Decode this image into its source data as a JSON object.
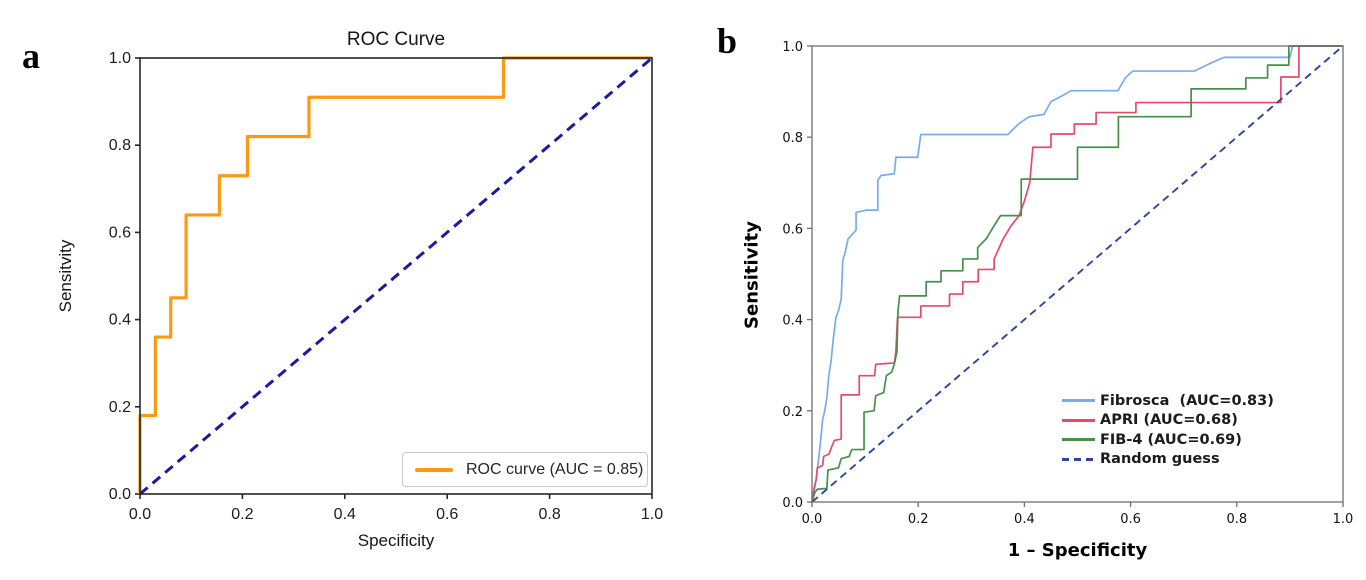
{
  "figure": {
    "background": "#ffffff"
  },
  "panels": [
    {
      "tag": "a",
      "title": "ROC Curve",
      "xlabel": "Specificity",
      "ylabel": "Sensitvity"
    },
    {
      "tag": "b",
      "title": "",
      "xlabel": "1 – Specificity",
      "ylabel": "Sensitivity"
    }
  ],
  "chart_data": [
    {
      "type": "line",
      "title": "ROC Curve",
      "xlabel": "Specificity",
      "ylabel": "Sensitvity",
      "xlim": [
        0,
        1
      ],
      "ylim": [
        0,
        1
      ],
      "xticks": [
        "0.0",
        "0.2",
        "0.4",
        "0.6",
        "0.8",
        "1.0"
      ],
      "yticks": [
        "0.0",
        "0.2",
        "0.4",
        "0.6",
        "0.8",
        "1.0"
      ],
      "grid": false,
      "legend_position": "lower right",
      "legend_frame": true,
      "series": [
        {
          "name": "ROC curve (AUC = 0.85)",
          "auc": 0.85,
          "color": "#ff9914",
          "dash": false,
          "width": 3.2,
          "points": [
            [
              0,
              0
            ],
            [
              0,
              0.18
            ],
            [
              0.03,
              0.18
            ],
            [
              0.03,
              0.36
            ],
            [
              0.06,
              0.36
            ],
            [
              0.06,
              0.45
            ],
            [
              0.09,
              0.45
            ],
            [
              0.09,
              0.64
            ],
            [
              0.155,
              0.64
            ],
            [
              0.155,
              0.73
            ],
            [
              0.21,
              0.73
            ],
            [
              0.21,
              0.82
            ],
            [
              0.33,
              0.82
            ],
            [
              0.33,
              0.91
            ],
            [
              0.71,
              0.91
            ],
            [
              0.71,
              1
            ],
            [
              1,
              1
            ]
          ]
        },
        {
          "color": "#1b1b9e",
          "dash": "10 6.5",
          "width": 3,
          "points": [
            [
              0,
              0
            ],
            [
              1,
              1
            ]
          ]
        }
      ]
    },
    {
      "type": "line",
      "title": "",
      "xlabel": "1 – Specificity",
      "ylabel": "Sensitivity",
      "xlim": [
        0,
        1
      ],
      "ylim": [
        0,
        1
      ],
      "xticks": [
        "0.0",
        "0.2",
        "0.4",
        "0.6",
        "0.8",
        "1.0"
      ],
      "yticks": [
        "0.0",
        "0.2",
        "0.4",
        "0.6",
        "0.8",
        "1.0"
      ],
      "grid": false,
      "legend_position": "lower right",
      "legend_frame": false,
      "series": [
        {
          "name": "Fibrosca  (AUC=0.83)",
          "auc": 0.83,
          "color": "#79abeb",
          "dash": false,
          "width": 1.7,
          "points": [
            [
              0,
              0
            ],
            [
              0.003,
              0.02
            ],
            [
              0.008,
              0.05
            ],
            [
              0.012,
              0.09
            ],
            [
              0.015,
              0.12
            ],
            [
              0.02,
              0.18
            ],
            [
              0.024,
              0.2
            ],
            [
              0.028,
              0.23
            ],
            [
              0.032,
              0.28
            ],
            [
              0.036,
              0.31
            ],
            [
              0.04,
              0.357
            ],
            [
              0.045,
              0.405
            ],
            [
              0.05,
              0.42
            ],
            [
              0.055,
              0.445
            ],
            [
              0.058,
              0.53
            ],
            [
              0.062,
              0.545
            ],
            [
              0.068,
              0.577
            ],
            [
              0.083,
              0.596
            ],
            [
              0.083,
              0.635
            ],
            [
              0.102,
              0.64
            ],
            [
              0.124,
              0.64
            ],
            [
              0.124,
              0.705
            ],
            [
              0.13,
              0.716
            ],
            [
              0.155,
              0.72
            ],
            [
              0.158,
              0.756
            ],
            [
              0.199,
              0.756
            ],
            [
              0.205,
              0.806
            ],
            [
              0.369,
              0.806
            ],
            [
              0.39,
              0.83
            ],
            [
              0.409,
              0.845
            ],
            [
              0.437,
              0.85
            ],
            [
              0.45,
              0.878
            ],
            [
              0.47,
              0.89
            ],
            [
              0.488,
              0.902
            ],
            [
              0.576,
              0.902
            ],
            [
              0.59,
              0.93
            ],
            [
              0.604,
              0.945
            ],
            [
              0.72,
              0.945
            ],
            [
              0.75,
              0.962
            ],
            [
              0.776,
              0.975
            ],
            [
              0.9,
              0.975
            ],
            [
              0.905,
              1
            ],
            [
              1,
              1
            ]
          ]
        },
        {
          "name": "APRI (AUC=0.68)",
          "auc": 0.68,
          "color": "#e54a6f",
          "dash": false,
          "width": 1.7,
          "points": [
            [
              0,
              0
            ],
            [
              0.004,
              0.03
            ],
            [
              0.008,
              0.05
            ],
            [
              0.01,
              0.075
            ],
            [
              0.02,
              0.08
            ],
            [
              0.022,
              0.1
            ],
            [
              0.032,
              0.105
            ],
            [
              0.035,
              0.115
            ],
            [
              0.042,
              0.135
            ],
            [
              0.055,
              0.138
            ],
            [
              0.055,
              0.235
            ],
            [
              0.089,
              0.235
            ],
            [
              0.089,
              0.277
            ],
            [
              0.118,
              0.277
            ],
            [
              0.12,
              0.302
            ],
            [
              0.155,
              0.305
            ],
            [
              0.158,
              0.33
            ],
            [
              0.161,
              0.405
            ],
            [
              0.205,
              0.405
            ],
            [
              0.205,
              0.43
            ],
            [
              0.259,
              0.43
            ],
            [
              0.259,
              0.456
            ],
            [
              0.284,
              0.456
            ],
            [
              0.284,
              0.483
            ],
            [
              0.313,
              0.483
            ],
            [
              0.313,
              0.51
            ],
            [
              0.343,
              0.51
            ],
            [
              0.343,
              0.533
            ],
            [
              0.35,
              0.551
            ],
            [
              0.36,
              0.577
            ],
            [
              0.375,
              0.606
            ],
            [
              0.39,
              0.628
            ],
            [
              0.4,
              0.66
            ],
            [
              0.41,
              0.7
            ],
            [
              0.416,
              0.778
            ],
            [
              0.45,
              0.778
            ],
            [
              0.45,
              0.807
            ],
            [
              0.494,
              0.807
            ],
            [
              0.494,
              0.829
            ],
            [
              0.535,
              0.829
            ],
            [
              0.535,
              0.854
            ],
            [
              0.61,
              0.854
            ],
            [
              0.61,
              0.876
            ],
            [
              0.883,
              0.876
            ],
            [
              0.883,
              0.932
            ],
            [
              0.917,
              0.932
            ],
            [
              0.917,
              1
            ],
            [
              1,
              1
            ]
          ]
        },
        {
          "name": "FIB-4 (AUC=0.69)",
          "auc": 0.69,
          "color": "#47904a",
          "dash": false,
          "width": 1.7,
          "points": [
            [
              0,
              0
            ],
            [
              0.005,
              0.02
            ],
            [
              0.01,
              0.028
            ],
            [
              0.028,
              0.03
            ],
            [
              0.03,
              0.07
            ],
            [
              0.05,
              0.075
            ],
            [
              0.055,
              0.095
            ],
            [
              0.07,
              0.1
            ],
            [
              0.075,
              0.115
            ],
            [
              0.098,
              0.115
            ],
            [
              0.098,
              0.197
            ],
            [
              0.117,
              0.2
            ],
            [
              0.12,
              0.233
            ],
            [
              0.135,
              0.24
            ],
            [
              0.14,
              0.277
            ],
            [
              0.15,
              0.285
            ],
            [
              0.155,
              0.302
            ],
            [
              0.16,
              0.33
            ],
            [
              0.162,
              0.42
            ],
            [
              0.165,
              0.452
            ],
            [
              0.215,
              0.452
            ],
            [
              0.215,
              0.483
            ],
            [
              0.243,
              0.483
            ],
            [
              0.243,
              0.507
            ],
            [
              0.284,
              0.507
            ],
            [
              0.284,
              0.533
            ],
            [
              0.312,
              0.533
            ],
            [
              0.312,
              0.558
            ],
            [
              0.328,
              0.577
            ],
            [
              0.343,
              0.606
            ],
            [
              0.355,
              0.628
            ],
            [
              0.394,
              0.628
            ],
            [
              0.394,
              0.708
            ],
            [
              0.5,
              0.708
            ],
            [
              0.5,
              0.778
            ],
            [
              0.577,
              0.778
            ],
            [
              0.577,
              0.845
            ],
            [
              0.714,
              0.845
            ],
            [
              0.714,
              0.906
            ],
            [
              0.817,
              0.906
            ],
            [
              0.817,
              0.93
            ],
            [
              0.858,
              0.93
            ],
            [
              0.858,
              0.958
            ],
            [
              0.898,
              0.958
            ],
            [
              0.898,
              1
            ],
            [
              1,
              1
            ]
          ]
        },
        {
          "name": "Random guess",
          "color": "#2f459c",
          "dash": "7.5 5",
          "width": 1.9,
          "points": [
            [
              0,
              0
            ],
            [
              1,
              1
            ]
          ]
        }
      ]
    }
  ]
}
